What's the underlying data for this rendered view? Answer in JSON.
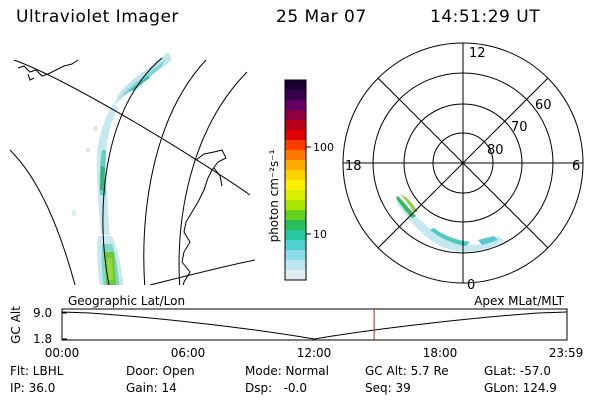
{
  "header": {
    "title": "Ultraviolet Imager",
    "date": "25 Mar 07",
    "time": "14:51:29 UT"
  },
  "colorbar": {
    "unit_label": "photon cm⁻²s⁻¹",
    "ticks": [
      "100",
      "10"
    ],
    "colors": [
      "#1a0030",
      "#3a0050",
      "#640064",
      "#8c0040",
      "#b80018",
      "#e00000",
      "#ff3c00",
      "#ff7800",
      "#ffaa00",
      "#ffd400",
      "#fff000",
      "#d8f000",
      "#a8e600",
      "#64d21e",
      "#28be5a",
      "#28c8a0",
      "#50d2d2",
      "#8cdcea",
      "#bee6f0",
      "#e0eef4"
    ]
  },
  "polar": {
    "ring_labels": [
      "80",
      "70",
      "60"
    ],
    "clock_labels": [
      "12",
      "18",
      "6",
      "0"
    ]
  },
  "timeline": {
    "left_label": "Geographic Lat/Lon",
    "right_label": "Apex MLat/MLT",
    "axis_title": "GC Alt",
    "y_ticks": [
      "9.0",
      "1.8"
    ],
    "x_ticks": [
      "00:00",
      "06:00",
      "12:00",
      "18:00",
      "23:59"
    ],
    "current_marker_hours": 14.86,
    "marker_color": "#cc2222"
  },
  "stats": {
    "row1": [
      "Flt: LBHL",
      "Door: Open",
      "Mode: Normal",
      "GC Alt: 5.7 Re",
      "GLat: -57.0"
    ],
    "row2": [
      "IP: 36.0",
      "Gain: 14",
      "Dsp:   -0.0",
      "Seq: 39",
      "GLon: 124.9"
    ]
  }
}
